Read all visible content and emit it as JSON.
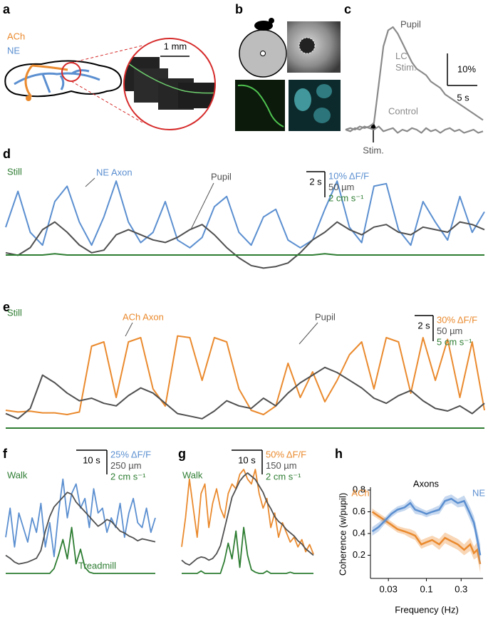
{
  "illustrations": {
    "a": {
      "panel": "a",
      "labels": [
        "ACh",
        "NE"
      ],
      "scale_bar": "1 mm"
    },
    "b": {
      "panel": "b"
    }
  },
  "chart_data": [
    {
      "type": "trace",
      "panel": "c",
      "annotations": [
        "Pupil",
        "Stim."
      ],
      "y_scale": {
        "value": 10,
        "label": "10%"
      },
      "time_scale": {
        "value": 5,
        "label": "5 s"
      },
      "series": [
        {
          "name": "LC Stim.",
          "color": "#8a8a8a",
          "values": [
            0,
            0.5,
            0,
            1,
            0.5,
            1,
            2,
            14,
            26,
            31,
            32,
            30,
            27,
            24,
            21,
            19,
            18,
            17,
            15,
            14,
            13,
            11,
            10,
            9,
            8,
            7,
            6,
            5,
            4,
            3
          ]
        },
        {
          "name": "Control",
          "color": "#8a8a8a",
          "values": [
            0,
            -0.5,
            0.5,
            0,
            1,
            0.5,
            0,
            1,
            -0.5,
            0,
            0.5,
            -1,
            0,
            -0.5,
            0.5,
            0,
            -1,
            0.5,
            -0.5,
            0,
            -1,
            0,
            0.5,
            -0.5,
            0,
            -1,
            -0.5,
            0,
            -1,
            -0.5
          ]
        }
      ]
    },
    {
      "type": "trace",
      "panel": "d",
      "annotations": [],
      "time_scale": {
        "value": 2,
        "label": "2 s"
      },
      "series": [
        {
          "name": "NE Axon",
          "color": "#5b8fd0",
          "scale": {
            "value": 10,
            "label": "10% ΔF/F"
          },
          "values": [
            10,
            24,
            8,
            3,
            20,
            26,
            12,
            3,
            14,
            28,
            12,
            4,
            8,
            20,
            5,
            2,
            6,
            18,
            22,
            8,
            3,
            14,
            17,
            5,
            2,
            5,
            17,
            28,
            10,
            4,
            26,
            27,
            9,
            3,
            20,
            12,
            5,
            22,
            8,
            16
          ]
        },
        {
          "name": "Pupil",
          "color": "#505050",
          "scale": {
            "value": 50,
            "label": "50 µm"
          },
          "values": [
            35,
            30,
            45,
            80,
            95,
            75,
            50,
            35,
            40,
            70,
            80,
            70,
            60,
            55,
            65,
            80,
            90,
            70,
            45,
            25,
            10,
            5,
            8,
            15,
            35,
            60,
            75,
            95,
            80,
            70,
            85,
            90,
            75,
            70,
            85,
            80,
            75,
            95,
            90,
            80
          ]
        },
        {
          "name": "Still",
          "color": "#2e7d32",
          "scale": {
            "value": 2,
            "label": "2 cm s⁻¹"
          },
          "values": [
            0,
            0,
            0,
            0,
            0.1,
            0,
            0,
            0,
            0,
            0,
            0,
            0,
            0,
            0,
            0,
            0,
            0,
            0,
            0,
            0,
            0,
            0,
            0,
            0,
            0,
            0,
            0.1,
            0,
            0,
            0,
            0,
            0,
            0,
            0,
            0,
            0,
            0,
            0,
            0,
            0
          ]
        }
      ]
    },
    {
      "type": "trace",
      "panel": "e",
      "annotations": [],
      "time_scale": {
        "value": 2,
        "label": "2 s"
      },
      "series": [
        {
          "name": "ACh Axon",
          "color": "#ea8a2e",
          "scale": {
            "value": 30,
            "label": "30% ΔF/F"
          },
          "values": [
            5,
            3,
            4,
            2,
            2,
            0,
            3,
            80,
            85,
            20,
            85,
            90,
            30,
            10,
            92,
            90,
            40,
            90,
            85,
            30,
            5,
            0,
            10,
            60,
            20,
            50,
            15,
            40,
            70,
            85,
            30,
            90,
            85,
            25,
            90,
            40,
            88,
            20,
            85,
            5
          ]
        },
        {
          "name": "Pupil",
          "color": "#505050",
          "scale": {
            "value": 50,
            "label": "50 µm"
          },
          "values": [
            20,
            10,
            30,
            95,
            80,
            60,
            45,
            50,
            40,
            35,
            55,
            70,
            60,
            40,
            20,
            15,
            10,
            25,
            45,
            35,
            30,
            50,
            35,
            60,
            80,
            95,
            110,
            100,
            85,
            70,
            50,
            40,
            55,
            65,
            45,
            30,
            25,
            35,
            20,
            40
          ]
        },
        {
          "name": "Still",
          "color": "#2e7d32",
          "scale": {
            "value": 5,
            "label": "5 cm s⁻¹"
          },
          "values": [
            0,
            0,
            0,
            0,
            0,
            0,
            0,
            0,
            0,
            0,
            0,
            0,
            0,
            0,
            0,
            0,
            0,
            0,
            0,
            0,
            0,
            0,
            0,
            0,
            0,
            0,
            0,
            0,
            0,
            0,
            0,
            0,
            0,
            0,
            0,
            0,
            0,
            0,
            0,
            0
          ]
        }
      ]
    },
    {
      "type": "trace",
      "panel": "f",
      "annotations": [
        "Walk"
      ],
      "time_scale": {
        "value": 10,
        "label": "10 s"
      },
      "series": [
        {
          "color": "#5b8fd0",
          "scale": {
            "value": 25,
            "label": "25% ΔF/F"
          },
          "values": [
            30,
            60,
            20,
            55,
            40,
            25,
            50,
            35,
            65,
            20,
            45,
            10,
            55,
            90,
            50,
            75,
            85,
            60,
            70,
            40,
            80,
            55,
            60,
            35,
            50,
            40,
            65,
            30,
            55,
            70,
            45,
            40,
            60,
            35,
            50
          ]
        },
        {
          "color": "#505050",
          "scale": {
            "value": 250,
            "label": "250 µm"
          },
          "values": [
            150,
            120,
            80,
            60,
            70,
            80,
            100,
            120,
            200,
            400,
            550,
            650,
            700,
            750,
            800,
            780,
            700,
            650,
            600,
            550,
            500,
            450,
            480,
            520,
            500,
            450,
            400,
            380,
            350,
            330,
            300,
            320,
            310,
            300,
            290
          ]
        },
        {
          "name": "Treadmill",
          "color": "#2e7d32",
          "scale": {
            "value": 2,
            "label": "2 cm s⁻¹"
          },
          "values": [
            0,
            0,
            0,
            0,
            0,
            0,
            0,
            0,
            0,
            0,
            0,
            0.4,
            1.5,
            2.8,
            1.2,
            3.8,
            0.8,
            2,
            0.5,
            0.1,
            0,
            0,
            0,
            0,
            0,
            0,
            0,
            0,
            0,
            0,
            0,
            0,
            0,
            0,
            0
          ]
        }
      ]
    },
    {
      "type": "trace",
      "panel": "g",
      "annotations": [
        "Walk"
      ],
      "time_scale": {
        "value": 10,
        "label": "10 s"
      },
      "series": [
        {
          "color": "#ea8a2e",
          "scale": {
            "value": 50,
            "label": "50% ΔF/F"
          },
          "values": [
            40,
            100,
            180,
            120,
            60,
            150,
            170,
            80,
            130,
            160,
            120,
            100,
            150,
            170,
            160,
            190,
            200,
            180,
            170,
            200,
            150,
            120,
            140,
            80,
            110,
            60,
            90,
            70,
            50,
            60,
            40,
            55,
            30,
            45,
            25
          ]
        },
        {
          "color": "#505050",
          "scale": {
            "value": 150,
            "label": "150 µm"
          },
          "values": [
            60,
            40,
            30,
            50,
            70,
            80,
            75,
            60,
            70,
            100,
            150,
            250,
            350,
            450,
            500,
            550,
            580,
            600,
            580,
            560,
            520,
            480,
            420,
            380,
            330,
            300,
            280,
            250,
            230,
            210,
            180,
            160,
            130,
            110,
            90
          ]
        },
        {
          "color": "#2e7d32",
          "scale": {
            "value": 2,
            "label": "2 cm s⁻¹"
          },
          "values": [
            0,
            0,
            0,
            0,
            0,
            0.2,
            0,
            0,
            0,
            0,
            0,
            1,
            2.5,
            1.2,
            3.5,
            0.5,
            3.8,
            1.5,
            0.3,
            0.1,
            0,
            0,
            0.2,
            0,
            0,
            0,
            0,
            0,
            0.1,
            0,
            0,
            0,
            0,
            0,
            0
          ]
        }
      ]
    },
    {
      "type": "line",
      "panel": "h",
      "annotations": [
        "Axons"
      ],
      "x_label": "Frequency (Hz)",
      "y_label": "Coherence (w/pupil)",
      "x_scale": "log",
      "xlim": [
        0.017,
        0.6
      ],
      "xticks": [
        0.03,
        0.1,
        0.3
      ],
      "ylim": [
        0,
        0.8
      ],
      "yticks": [
        0.2,
        0.4,
        0.6,
        0.8
      ],
      "x": [
        0.018,
        0.022,
        0.027,
        0.033,
        0.04,
        0.05,
        0.06,
        0.07,
        0.085,
        0.1,
        0.12,
        0.15,
        0.18,
        0.22,
        0.27,
        0.33,
        0.4,
        0.45,
        0.5,
        0.55
      ],
      "series": [
        {
          "name": "ACh",
          "color": "#ea8a2e",
          "values": [
            0.6,
            0.56,
            0.52,
            0.48,
            0.44,
            0.42,
            0.4,
            0.38,
            0.3,
            0.32,
            0.34,
            0.3,
            0.36,
            0.33,
            0.3,
            0.25,
            0.3,
            0.22,
            0.25,
            0.12
          ],
          "errors": [
            0.03,
            0.03,
            0.03,
            0.03,
            0.03,
            0.03,
            0.04,
            0.04,
            0.04,
            0.04,
            0.04,
            0.05,
            0.05,
            0.05,
            0.05,
            0.05,
            0.06,
            0.06,
            0.07,
            0.08
          ]
        },
        {
          "name": "NE",
          "color": "#5b8fd0",
          "values": [
            0.42,
            0.46,
            0.52,
            0.58,
            0.62,
            0.64,
            0.68,
            0.62,
            0.6,
            0.58,
            0.6,
            0.62,
            0.7,
            0.72,
            0.68,
            0.7,
            0.58,
            0.5,
            0.35,
            0.2
          ],
          "errors": [
            0.04,
            0.04,
            0.03,
            0.03,
            0.03,
            0.03,
            0.04,
            0.04,
            0.03,
            0.03,
            0.03,
            0.04,
            0.04,
            0.04,
            0.04,
            0.05,
            0.06,
            0.06,
            0.08,
            0.1
          ]
        }
      ]
    }
  ]
}
